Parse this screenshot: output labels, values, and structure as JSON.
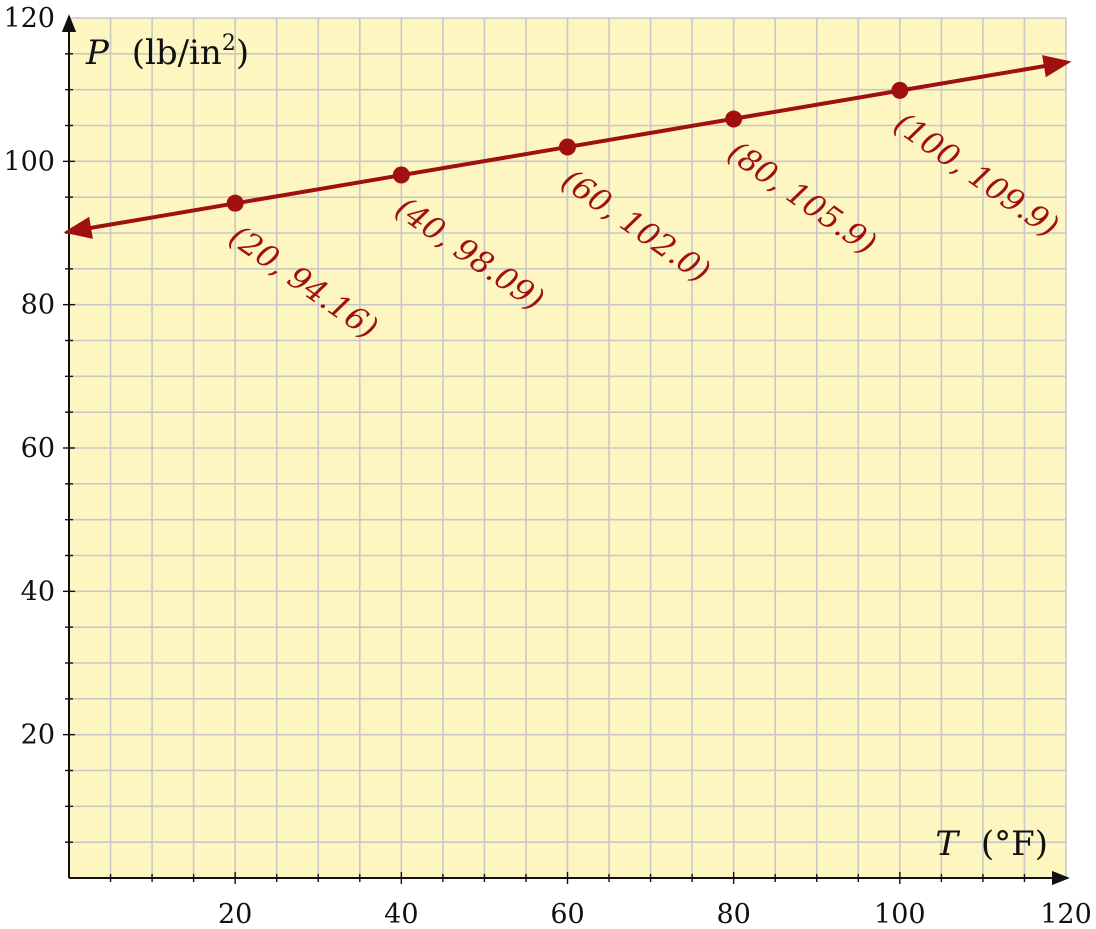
{
  "chart_data": {
    "type": "line",
    "xlim": [
      0,
      120
    ],
    "ylim": [
      0,
      120
    ],
    "x_ticks": [
      20,
      40,
      60,
      80,
      100,
      120
    ],
    "y_ticks": [
      20,
      40,
      60,
      80,
      100,
      120
    ],
    "x_tick_labels": [
      "20",
      "40",
      "60",
      "80",
      "100",
      "120"
    ],
    "y_tick_labels": [
      "20",
      "40",
      "60",
      "80",
      "100",
      "120"
    ],
    "xlabel": {
      "var": "T",
      "unit": "(°F)"
    },
    "ylabel": {
      "var": "P",
      "unit": "(lb/in",
      "sup": "2",
      "close": ")"
    },
    "grid": true,
    "series": [
      {
        "points": [
          {
            "x": 20,
            "y": 94.16,
            "label": "(20, 94.16)"
          },
          {
            "x": 40,
            "y": 98.09,
            "label": "(40, 98.09)"
          },
          {
            "x": 60,
            "y": 102.0,
            "label": "(60, 102.0)"
          },
          {
            "x": 80,
            "y": 105.9,
            "label": "(80, 105.9)"
          },
          {
            "x": 100,
            "y": 109.9,
            "label": "(100, 109.9)"
          }
        ],
        "line": {
          "x_start": 0,
          "y_start": 90.2,
          "x_end": 120,
          "y_end": 113.8,
          "arrows": "both"
        }
      }
    ]
  },
  "colors": {
    "background": "#fdf6c1",
    "grid": "#c8c8c8",
    "axis": "#111111",
    "series": "#a01010"
  }
}
